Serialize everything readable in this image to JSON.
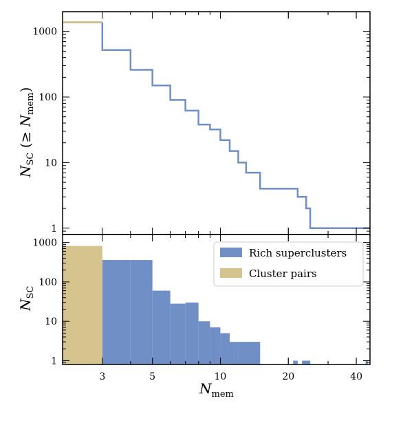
{
  "chart_data": [
    {
      "type": "line",
      "panel": "top",
      "step": true,
      "xscale": "log",
      "yscale": "log",
      "xlim": [
        2.0,
        46
      ],
      "ylim": [
        0.8,
        2000
      ],
      "ylabel": {
        "main": "N",
        "sub": "SC",
        "rest": " (≥ ",
        "main2": "N",
        "sub2": "mem",
        "close": ")"
      },
      "yticks": [
        1,
        10,
        100,
        1000
      ],
      "ytick_labels": [
        "1",
        "10",
        "100",
        "1000"
      ],
      "series": [
        {
          "color": "#6f8fc6",
          "x": [
            3,
            4,
            5,
            6,
            7,
            8,
            9,
            10,
            11,
            12,
            13,
            15,
            22,
            24,
            25,
            45
          ],
          "y": [
            520,
            260,
            150,
            90,
            62,
            38,
            32,
            22,
            15,
            10,
            7,
            4,
            3,
            2,
            1,
            1
          ]
        },
        {
          "color": "#c8b884",
          "x": [
            2.0,
            3
          ],
          "y": [
            1380,
            1380
          ]
        }
      ]
    },
    {
      "type": "bar",
      "panel": "bottom",
      "xscale": "log",
      "yscale": "log",
      "xlim": [
        2.0,
        46
      ],
      "ylim": [
        0.8,
        1600
      ],
      "xlabel": {
        "main": "N",
        "sub": "mem"
      },
      "ylabel": {
        "main": "N",
        "sub": "SC"
      },
      "xticks": [
        3,
        5,
        10,
        20,
        40
      ],
      "xtick_labels": [
        "3",
        "5",
        "10",
        "20",
        "40"
      ],
      "yticks": [
        1,
        10,
        100,
        1000
      ],
      "ytick_labels": [
        "1",
        "10",
        "100",
        "1000"
      ],
      "legend": {
        "position": "top-right",
        "entries": [
          {
            "label": "Rich superclusters",
            "color": "#6f8fc6"
          },
          {
            "label": "Cluster pairs",
            "color": "#d6c48e"
          }
        ]
      },
      "series": [
        {
          "name": "Rich superclusters",
          "color": "#6f8fc6",
          "bins": [
            [
              3,
              4
            ],
            [
              4,
              5
            ],
            [
              5,
              6
            ],
            [
              6,
              7
            ],
            [
              7,
              8
            ],
            [
              8,
              9
            ],
            [
              9,
              10
            ],
            [
              10,
              11
            ],
            [
              11,
              12
            ],
            [
              12,
              15
            ],
            [
              21,
              22
            ],
            [
              23,
              25
            ],
            [
              44,
              45
            ]
          ],
          "values": [
            360,
            360,
            60,
            28,
            30,
            10,
            7,
            5,
            3,
            3,
            1,
            1,
            1
          ]
        },
        {
          "name": "Cluster pairs",
          "color": "#d6c48e",
          "bins": [
            [
              2.0,
              3
            ]
          ],
          "values": [
            820
          ]
        }
      ]
    }
  ]
}
